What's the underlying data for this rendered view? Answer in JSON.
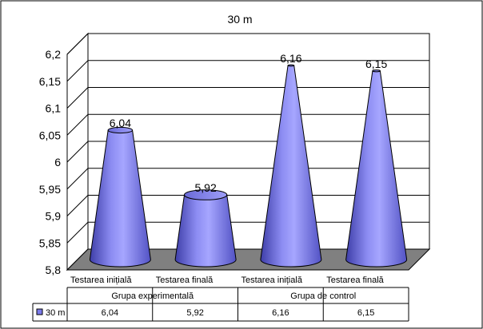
{
  "chart_data": {
    "type": "bar",
    "bar_shape": "cone",
    "title": "30 m",
    "groups": [
      {
        "label": "Grupa experimentală",
        "categories": [
          "Testarea inițială",
          "Testarea finală"
        ]
      },
      {
        "label": "Grupa de control",
        "categories": [
          "Testarea inițială",
          "Testarea finală"
        ]
      }
    ],
    "categories": [
      "Testarea inițială",
      "Testarea finală",
      "Testarea inițială",
      "Testarea finală"
    ],
    "series": [
      {
        "name": "30 m",
        "values": [
          6.04,
          5.92,
          6.16,
          6.15
        ],
        "value_labels": [
          "6,04",
          "5,92",
          "6,16",
          "6,15"
        ]
      }
    ],
    "ylim": [
      5.8,
      6.2
    ],
    "yticks": [
      5.8,
      5.85,
      5.9,
      5.95,
      6,
      6.05,
      6.1,
      6.15,
      6.2
    ],
    "ytick_labels": [
      "5,8",
      "5,85",
      "5,9",
      "5,95",
      "6",
      "6,05",
      "6,1",
      "6,15",
      "6,2"
    ],
    "xlabel": "",
    "ylabel": "",
    "grid": true,
    "legend": "data-table",
    "colors": {
      "bar": "#7B7BEB",
      "bar_dark": "#4A4AB8",
      "bar_light": "#B8B8FF",
      "floor": "#808080",
      "grid": "#000000"
    }
  }
}
